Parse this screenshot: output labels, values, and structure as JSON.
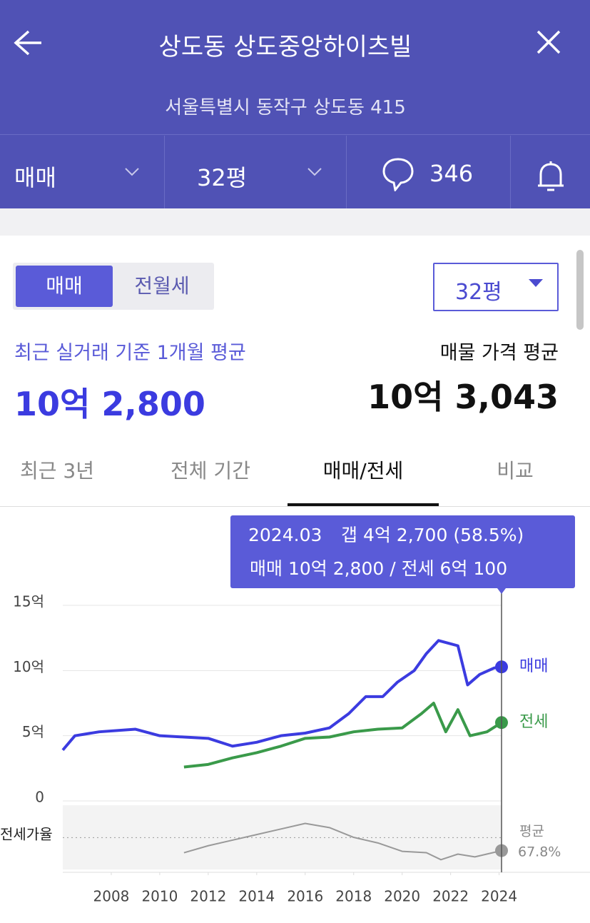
{
  "header": {
    "title": "상도동 상도중앙하이츠빌",
    "address": "서울특별시 동작구 상도동 415"
  },
  "filters": {
    "deal": "매매",
    "size": "32평",
    "comments": 346
  },
  "segment": {
    "options": [
      "매매",
      "전월세"
    ],
    "size_select": "32평"
  },
  "summary": {
    "recent_label": "최근 실거래 기준 1개월 평균",
    "recent_value": "10억 2,800",
    "listing_label": "매물 가격 평균",
    "listing_value": "10억 3,043"
  },
  "tabs": [
    "최근 3년",
    "전체 기간",
    "매매/전세",
    "비교"
  ],
  "tooltip": {
    "date": "2024.03",
    "gap": "갭 4억 2,700 (58.5%)",
    "detail": "매매 10억 2,800 / 전세 6억 100"
  },
  "chart_data": {
    "type": "line",
    "xlim": [
      2006,
      2024.1
    ],
    "xticks": [
      2008,
      2010,
      2012,
      2014,
      2016,
      2018,
      2020,
      2022,
      2024
    ],
    "ylim": [
      0,
      15
    ],
    "yticks": [
      0,
      {
        "value": 5,
        "label": "5억"
      },
      {
        "value": 10,
        "label": "10억"
      },
      {
        "value": 15,
        "label": "15억"
      }
    ],
    "y2lim": [
      45,
      90
    ],
    "y2label": "전세가율",
    "grid": true,
    "series": [
      {
        "name": "매매",
        "color": "#3b3be0",
        "x": [
          2006.0,
          2006.5,
          2007.5,
          2009,
          2010,
          2011,
          2012,
          2013,
          2014,
          2015,
          2016,
          2017,
          2017.8,
          2018.5,
          2019.2,
          2019.8,
          2020.5,
          2021,
          2021.5,
          2022.3,
          2022.7,
          2023.2,
          2023.8,
          2024.1
        ],
        "values": [
          3.9,
          5.0,
          5.3,
          5.5,
          5.0,
          4.9,
          4.8,
          4.2,
          4.5,
          5.0,
          5.2,
          5.6,
          6.7,
          8.0,
          8.0,
          9.1,
          10.0,
          11.3,
          12.3,
          11.9,
          8.9,
          9.7,
          10.2,
          10.28
        ]
      },
      {
        "name": "전세",
        "color": "#3a9a4a",
        "x": [
          2011,
          2012,
          2013,
          2014,
          2015,
          2016,
          2017,
          2018,
          2019,
          2020,
          2020.8,
          2021.3,
          2021.8,
          2022.3,
          2022.8,
          2023.5,
          2024.1
        ],
        "values": [
          2.6,
          2.8,
          3.3,
          3.7,
          4.2,
          4.8,
          4.9,
          5.3,
          5.5,
          5.6,
          6.7,
          7.5,
          5.3,
          7.0,
          5.0,
          5.3,
          6.01
        ]
      },
      {
        "name": "전세가율",
        "color": "#999999",
        "axis": "y2",
        "x": [
          2011,
          2012,
          2013,
          2014,
          2015,
          2016,
          2017,
          2018,
          2019,
          2020,
          2021,
          2021.6,
          2022.3,
          2023,
          2024.1
        ],
        "values": [
          57,
          62,
          66,
          70,
          74,
          78,
          75,
          68,
          64,
          58,
          57,
          52,
          56,
          54,
          58.5
        ]
      }
    ],
    "average": {
      "name": "평균",
      "value": 67.8,
      "value_label": "67.8%"
    }
  }
}
